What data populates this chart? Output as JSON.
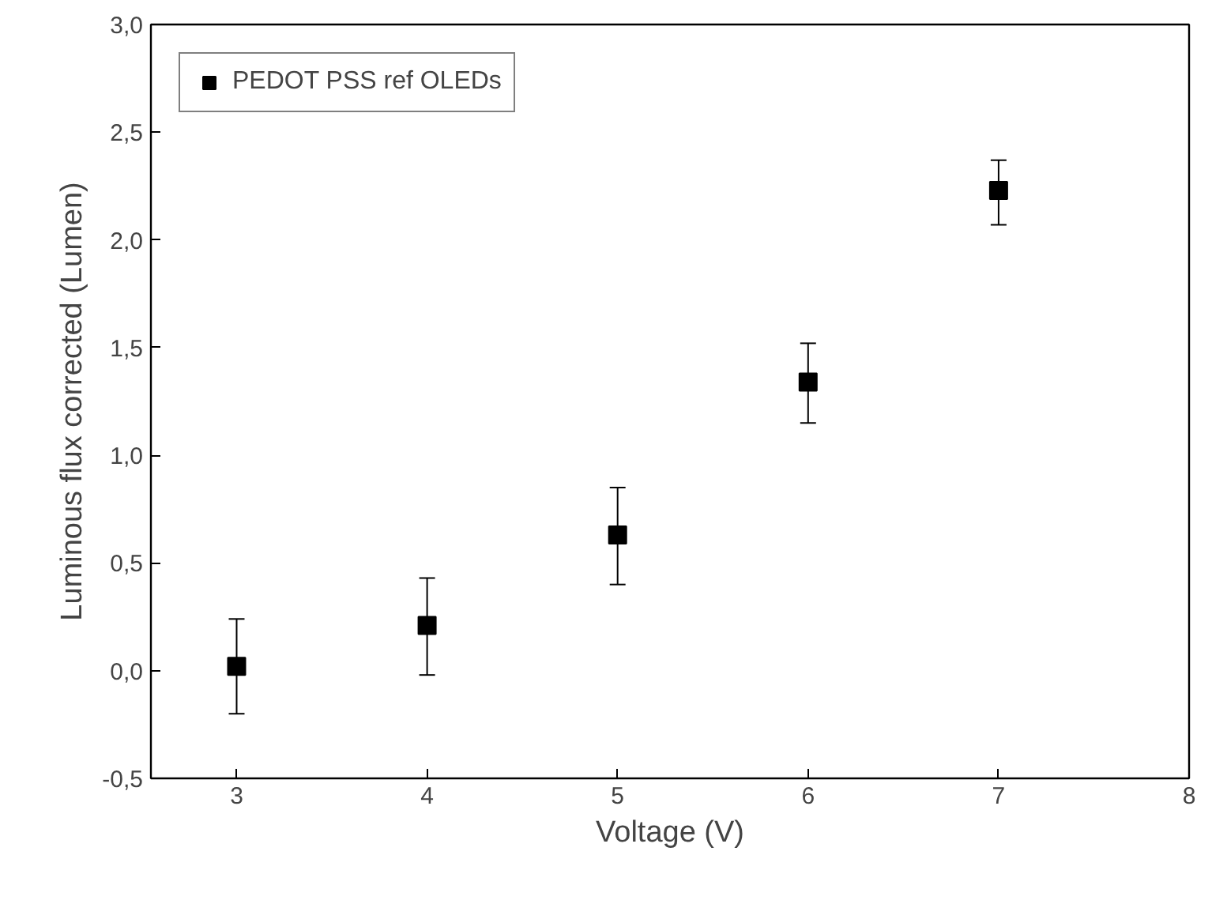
{
  "chart_data": {
    "type": "scatter",
    "xlabel": "Voltage (V)",
    "ylabel": "Luminous flux corrected (Lumen)",
    "x": [
      3,
      4,
      5,
      6,
      7
    ],
    "series": [
      {
        "name": "PEDOT PSS ref OLEDs",
        "color": "#000000",
        "values": [
          0.02,
          0.21,
          0.63,
          1.34,
          2.23
        ],
        "errors": [
          [
            -0.2,
            0.24
          ],
          [
            -0.02,
            0.43
          ],
          [
            0.4,
            0.85
          ],
          [
            1.15,
            1.52
          ],
          [
            2.07,
            2.37
          ]
        ]
      }
    ],
    "xlim": [
      2.55,
      8
    ],
    "xticks": [
      3,
      4,
      5,
      6,
      7,
      8
    ],
    "ylim": [
      -0.5,
      3.0
    ],
    "yticks": [
      {
        "value": -0.5,
        "label": "-0,5"
      },
      {
        "value": 0,
        "label": "0,0"
      },
      {
        "value": 0.5,
        "label": "0,5"
      },
      {
        "value": 1.0,
        "label": "1,0"
      },
      {
        "value": 1.5,
        "label": "1,5"
      },
      {
        "value": 2.0,
        "label": "2,0"
      },
      {
        "value": 2.5,
        "label": "2,5"
      },
      {
        "value": 3.0,
        "label": "3,0"
      }
    ],
    "marker": "square",
    "grid": false,
    "legend": "top left"
  }
}
